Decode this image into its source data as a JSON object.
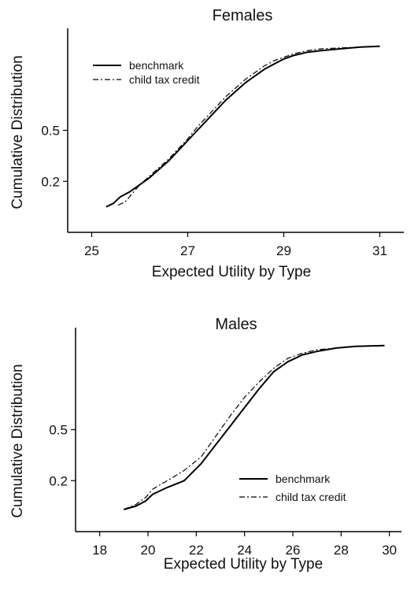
{
  "chart_data": [
    {
      "type": "line",
      "title": "Females",
      "xlabel": "Expected Utility by Type",
      "ylabel": "Cumulative Distribution",
      "xlim": [
        24.5,
        31.5
      ],
      "ylim": [
        -0.1,
        1.1
      ],
      "xticks": [
        "25",
        "27",
        "29",
        "31"
      ],
      "yticks": [
        "0.2",
        "0.5"
      ],
      "legend_position": "top-left",
      "series": [
        {
          "name": "benchmark",
          "style": "solid",
          "x": [
            25.3,
            25.45,
            25.6,
            25.8,
            26.0,
            26.2,
            26.4,
            26.6,
            26.8,
            27.0,
            27.2,
            27.4,
            27.6,
            27.8,
            28.0,
            28.2,
            28.4,
            28.6,
            28.8,
            29.0,
            29.2,
            29.5,
            29.8,
            30.2,
            30.6,
            31.0
          ],
          "values": [
            0.05,
            0.07,
            0.11,
            0.14,
            0.18,
            0.22,
            0.27,
            0.32,
            0.38,
            0.44,
            0.5,
            0.56,
            0.62,
            0.68,
            0.73,
            0.78,
            0.82,
            0.86,
            0.89,
            0.92,
            0.94,
            0.96,
            0.97,
            0.98,
            0.99,
            0.995
          ]
        },
        {
          "name": "child tax credit",
          "style": "dashdot",
          "x": [
            25.55,
            25.7,
            25.85,
            26.0,
            26.2,
            26.4,
            26.6,
            26.8,
            27.0,
            27.2,
            27.4,
            27.6,
            27.8,
            28.0,
            28.2,
            28.4,
            28.6,
            28.8,
            29.0,
            29.2,
            29.5,
            29.8,
            30.2,
            30.6,
            31.0
          ],
          "values": [
            0.06,
            0.08,
            0.13,
            0.18,
            0.23,
            0.28,
            0.33,
            0.39,
            0.45,
            0.52,
            0.58,
            0.64,
            0.7,
            0.75,
            0.8,
            0.84,
            0.88,
            0.91,
            0.93,
            0.95,
            0.97,
            0.98,
            0.985,
            0.99,
            0.995
          ]
        }
      ]
    },
    {
      "type": "line",
      "title": "Males",
      "xlabel": "Expected Utility by Type",
      "ylabel": "Cumulative Distribution",
      "xlim": [
        17,
        30.5
      ],
      "ylim": [
        -0.1,
        1.1
      ],
      "xticks": [
        "18",
        "20",
        "22",
        "24",
        "26",
        "28",
        "30"
      ],
      "yticks": [
        "0.2",
        "0.5"
      ],
      "legend_position": "bottom-right",
      "series": [
        {
          "name": "benchmark",
          "style": "solid",
          "x": [
            19.0,
            19.5,
            19.9,
            20.2,
            20.8,
            21.5,
            22.2,
            22.8,
            23.4,
            24.0,
            24.6,
            25.2,
            25.8,
            26.4,
            27.0,
            27.8,
            28.6,
            29.8
          ],
          "values": [
            0.03,
            0.05,
            0.08,
            0.12,
            0.16,
            0.2,
            0.3,
            0.41,
            0.52,
            0.63,
            0.74,
            0.84,
            0.9,
            0.94,
            0.96,
            0.98,
            0.99,
            0.995
          ]
        },
        {
          "name": "child tax credit",
          "style": "dashdot",
          "x": [
            19.0,
            19.5,
            19.9,
            20.2,
            20.8,
            21.5,
            22.2,
            22.8,
            23.4,
            24.0,
            24.6,
            25.2,
            25.8,
            26.4,
            27.0,
            27.8,
            28.6,
            29.8
          ],
          "values": [
            0.03,
            0.06,
            0.1,
            0.15,
            0.2,
            0.26,
            0.34,
            0.46,
            0.58,
            0.69,
            0.78,
            0.86,
            0.92,
            0.95,
            0.97,
            0.98,
            0.99,
            0.995
          ]
        }
      ]
    }
  ]
}
